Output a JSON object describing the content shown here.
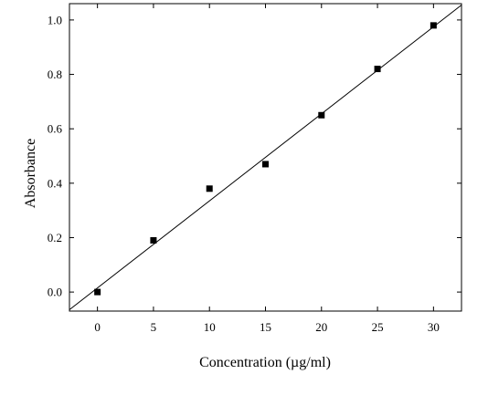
{
  "chart_data": {
    "type": "scatter",
    "title": "",
    "xlabel": "Concentration (µg/ml)",
    "ylabel": "Absorbance",
    "xlim": [
      -2.5,
      32.5
    ],
    "ylim": [
      -0.07,
      1.06
    ],
    "xticks": [
      0,
      5,
      10,
      15,
      20,
      25,
      30
    ],
    "xtick_labels": [
      "0",
      "5",
      "10",
      "15",
      "20",
      "25",
      "30"
    ],
    "yticks": [
      0.0,
      0.2,
      0.4,
      0.6,
      0.8,
      1.0
    ],
    "ytick_labels": [
      "0.0",
      "0.2",
      "0.4",
      "0.6",
      "0.8",
      "1.0"
    ],
    "grid": false,
    "legend": false,
    "marker": "square",
    "marker_color": "#000000",
    "line_color": "#000000",
    "series": [
      {
        "x": [
          0,
          5,
          10,
          15,
          20,
          25,
          30
        ],
        "y": [
          0.0,
          0.19,
          0.38,
          0.47,
          0.65,
          0.82,
          0.98
        ]
      }
    ],
    "fit_line": {
      "x": [
        -2.5,
        32.5
      ],
      "y": [
        -0.065,
        1.055
      ]
    }
  }
}
